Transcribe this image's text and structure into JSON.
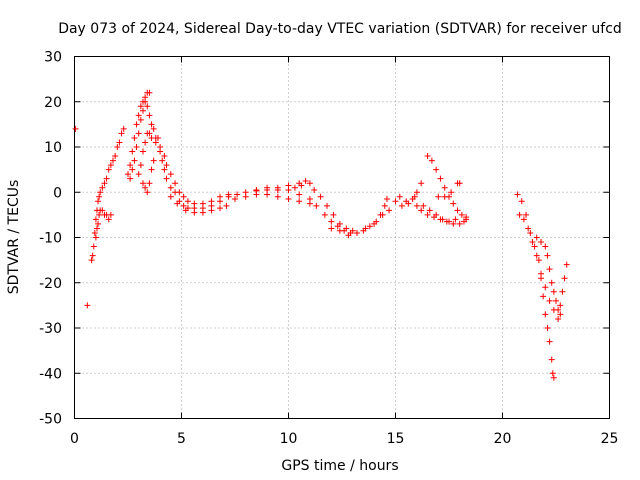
{
  "chart_data": {
    "type": "scatter",
    "title": "Day 073 of 2024, Sidereal Day-to-day VTEC variation (SDTVAR) for receiver ufcd",
    "xlabel": "GPS time / hours",
    "ylabel": "SDTVAR / TECUs",
    "xlim": [
      0,
      25
    ],
    "ylim": [
      -50,
      30
    ],
    "xticks": [
      0,
      5,
      10,
      15,
      20,
      25
    ],
    "yticks": [
      -50,
      -40,
      -30,
      -20,
      -10,
      0,
      10,
      20,
      30
    ],
    "xtick_labels": [
      "0",
      "5",
      "10",
      "15",
      "20",
      "25"
    ],
    "ytick_labels": [
      "-50",
      "-40",
      "-30",
      "-20",
      "-10",
      "0",
      "10",
      "20",
      "30"
    ],
    "grid": true,
    "marker": "plus",
    "color": "#ff0000",
    "series": [
      {
        "name": "ufcd",
        "points": [
          [
            0.05,
            14
          ],
          [
            0.6,
            -25
          ],
          [
            0.8,
            -15
          ],
          [
            0.85,
            -14
          ],
          [
            0.9,
            -12
          ],
          [
            0.95,
            -9
          ],
          [
            1.0,
            -6
          ],
          [
            1.05,
            -4
          ],
          [
            1.1,
            -2
          ],
          [
            1.15,
            -1
          ],
          [
            1.2,
            0
          ],
          [
            1.3,
            1
          ],
          [
            1.4,
            2
          ],
          [
            1.5,
            3
          ],
          [
            1.6,
            5
          ],
          [
            1.7,
            6
          ],
          [
            1.8,
            7
          ],
          [
            1.9,
            8
          ],
          [
            2.0,
            10
          ],
          [
            2.1,
            11
          ],
          [
            2.2,
            13
          ],
          [
            2.3,
            14
          ],
          [
            1.0,
            -10
          ],
          [
            1.05,
            -8
          ],
          [
            1.1,
            -7
          ],
          [
            1.15,
            -5
          ],
          [
            1.2,
            -4
          ],
          [
            1.3,
            -4
          ],
          [
            1.4,
            -5
          ],
          [
            1.5,
            -5
          ],
          [
            1.6,
            -6
          ],
          [
            1.7,
            -5
          ],
          [
            2.5,
            4
          ],
          [
            2.6,
            6
          ],
          [
            2.7,
            9
          ],
          [
            2.8,
            12
          ],
          [
            2.9,
            15
          ],
          [
            3.0,
            17
          ],
          [
            3.1,
            19
          ],
          [
            3.2,
            20
          ],
          [
            3.3,
            21
          ],
          [
            3.4,
            22
          ],
          [
            3.5,
            22
          ],
          [
            2.6,
            3
          ],
          [
            2.7,
            5
          ],
          [
            2.8,
            7
          ],
          [
            2.9,
            10
          ],
          [
            3.0,
            13
          ],
          [
            3.1,
            16
          ],
          [
            3.2,
            18
          ],
          [
            3.3,
            20
          ],
          [
            3.4,
            19
          ],
          [
            3.5,
            17
          ],
          [
            3.6,
            15
          ],
          [
            3.8,
            12
          ],
          [
            3.0,
            4
          ],
          [
            3.1,
            6
          ],
          [
            3.2,
            9
          ],
          [
            3.3,
            11
          ],
          [
            3.4,
            13
          ],
          [
            3.5,
            13
          ],
          [
            3.6,
            12
          ],
          [
            3.8,
            11
          ],
          [
            4.0,
            9
          ],
          [
            4.1,
            7
          ],
          [
            4.2,
            5
          ],
          [
            4.3,
            3
          ],
          [
            4.5,
            1
          ],
          [
            4.7,
            0
          ],
          [
            4.9,
            -2
          ],
          [
            5.1,
            -3
          ],
          [
            5.3,
            -3.5
          ],
          [
            5.6,
            -3.5
          ],
          [
            6.0,
            -3.5
          ],
          [
            6.4,
            -3
          ],
          [
            6.8,
            -2
          ],
          [
            7.2,
            -1
          ],
          [
            7.6,
            -0.5
          ],
          [
            8.0,
            0
          ],
          [
            8.5,
            0.3
          ],
          [
            9.0,
            0.5
          ],
          [
            9.5,
            0.5
          ],
          [
            10.0,
            0.5
          ],
          [
            10.3,
            1
          ],
          [
            10.6,
            1.5
          ],
          [
            3.7,
            14
          ],
          [
            3.9,
            12
          ],
          [
            4.0,
            10
          ],
          [
            4.2,
            8
          ],
          [
            4.3,
            6
          ],
          [
            4.5,
            4
          ],
          [
            4.7,
            2
          ],
          [
            4.9,
            0
          ],
          [
            5.1,
            -1
          ],
          [
            5.3,
            -2
          ],
          [
            5.6,
            -2.5
          ],
          [
            6.0,
            -2.5
          ],
          [
            6.4,
            -2
          ],
          [
            6.8,
            -1
          ],
          [
            7.2,
            -0.5
          ],
          [
            3.2,
            2
          ],
          [
            3.3,
            1
          ],
          [
            3.4,
            0
          ],
          [
            3.5,
            2
          ],
          [
            3.6,
            5
          ],
          [
            3.7,
            7
          ],
          [
            4.5,
            -1
          ],
          [
            4.8,
            -2.5
          ],
          [
            5.2,
            -4
          ],
          [
            5.6,
            -4.5
          ],
          [
            6.0,
            -4.5
          ],
          [
            6.4,
            -4
          ],
          [
            6.8,
            -3.5
          ],
          [
            7.1,
            -3
          ],
          [
            7.5,
            -1.5
          ],
          [
            8.0,
            -1
          ],
          [
            8.5,
            -0.5
          ],
          [
            9.0,
            -0.5
          ],
          [
            9.5,
            -1
          ],
          [
            10.0,
            -1.5
          ],
          [
            10.5,
            -2
          ],
          [
            11.0,
            -2.5
          ],
          [
            8.5,
            0.5
          ],
          [
            9.0,
            1
          ],
          [
            9.5,
            1
          ],
          [
            10.0,
            1.5
          ],
          [
            10.5,
            2
          ],
          [
            10.8,
            2.5
          ],
          [
            11.0,
            2
          ],
          [
            11.2,
            0.5
          ],
          [
            11.5,
            -1
          ],
          [
            11.8,
            -3
          ],
          [
            12.1,
            -5
          ],
          [
            12.4,
            -7
          ],
          [
            12.7,
            -8
          ],
          [
            13.0,
            -8.5
          ],
          [
            10.5,
            -0.5
          ],
          [
            11.0,
            -1.5
          ],
          [
            11.3,
            -3
          ],
          [
            11.7,
            -5
          ],
          [
            12.0,
            -6.5
          ],
          [
            12.3,
            -7.5
          ],
          [
            12.6,
            -8.5
          ],
          [
            12.9,
            -9
          ],
          [
            13.2,
            -9
          ],
          [
            13.5,
            -8.5
          ],
          [
            13.8,
            -7.5
          ],
          [
            14.1,
            -6.5
          ],
          [
            14.3,
            -5
          ],
          [
            14.5,
            -3
          ],
          [
            14.6,
            -1.5
          ],
          [
            12.0,
            -8
          ],
          [
            12.4,
            -8.5
          ],
          [
            12.8,
            -9.5
          ],
          [
            13.2,
            -9
          ],
          [
            13.6,
            -8
          ],
          [
            14.0,
            -7
          ],
          [
            14.4,
            -5
          ],
          [
            14.7,
            -4
          ],
          [
            15.0,
            -2
          ],
          [
            15.3,
            -3
          ],
          [
            15.6,
            -2.5
          ],
          [
            15.8,
            -1.5
          ],
          [
            16.0,
            0
          ],
          [
            16.2,
            2
          ],
          [
            15.2,
            -1
          ],
          [
            15.5,
            -2
          ],
          [
            15.9,
            -1
          ],
          [
            16.0,
            -3
          ],
          [
            16.2,
            -4
          ],
          [
            16.5,
            -5
          ],
          [
            16.8,
            -5.5
          ],
          [
            17.1,
            -6
          ],
          [
            17.4,
            -6.5
          ],
          [
            17.7,
            -7
          ],
          [
            18.0,
            -7
          ],
          [
            18.2,
            -6.5
          ],
          [
            18.3,
            -5.5
          ],
          [
            16.5,
            8
          ],
          [
            16.7,
            7
          ],
          [
            16.9,
            5
          ],
          [
            17.1,
            3
          ],
          [
            17.3,
            1
          ],
          [
            17.5,
            -1
          ],
          [
            17.7,
            -2.5
          ],
          [
            17.9,
            -4
          ],
          [
            18.1,
            -5
          ],
          [
            18.3,
            -6
          ],
          [
            16.3,
            -3
          ],
          [
            16.6,
            -4
          ],
          [
            16.9,
            -5
          ],
          [
            17.2,
            -6
          ],
          [
            17.5,
            -6.5
          ],
          [
            17.8,
            -6
          ],
          [
            17.0,
            -1
          ],
          [
            17.3,
            -1
          ],
          [
            17.6,
            0
          ],
          [
            17.9,
            2
          ],
          [
            18.0,
            2
          ],
          [
            20.7,
            -0.5
          ],
          [
            20.9,
            -2
          ],
          [
            21.1,
            -5
          ],
          [
            21.3,
            -9
          ],
          [
            21.5,
            -12
          ],
          [
            21.7,
            -15
          ],
          [
            21.8,
            -19
          ],
          [
            21.9,
            -23
          ],
          [
            22.0,
            -27
          ],
          [
            22.1,
            -30
          ],
          [
            22.2,
            -33
          ],
          [
            22.3,
            -37
          ],
          [
            22.35,
            -40
          ],
          [
            22.4,
            -41
          ],
          [
            20.8,
            -5
          ],
          [
            21.0,
            -6
          ],
          [
            21.2,
            -8
          ],
          [
            21.4,
            -11
          ],
          [
            21.6,
            -14
          ],
          [
            21.8,
            -18
          ],
          [
            22.0,
            -21
          ],
          [
            22.2,
            -24
          ],
          [
            22.4,
            -26
          ],
          [
            22.6,
            -28
          ],
          [
            21.6,
            -10
          ],
          [
            21.8,
            -11
          ],
          [
            22.0,
            -12
          ],
          [
            22.1,
            -14
          ],
          [
            22.2,
            -17
          ],
          [
            22.3,
            -20
          ],
          [
            22.4,
            -22
          ],
          [
            22.5,
            -24
          ],
          [
            22.6,
            -26
          ],
          [
            22.7,
            -27
          ],
          [
            22.7,
            -25
          ],
          [
            22.8,
            -22
          ],
          [
            22.9,
            -19
          ],
          [
            23.0,
            -16
          ]
        ]
      }
    ]
  }
}
